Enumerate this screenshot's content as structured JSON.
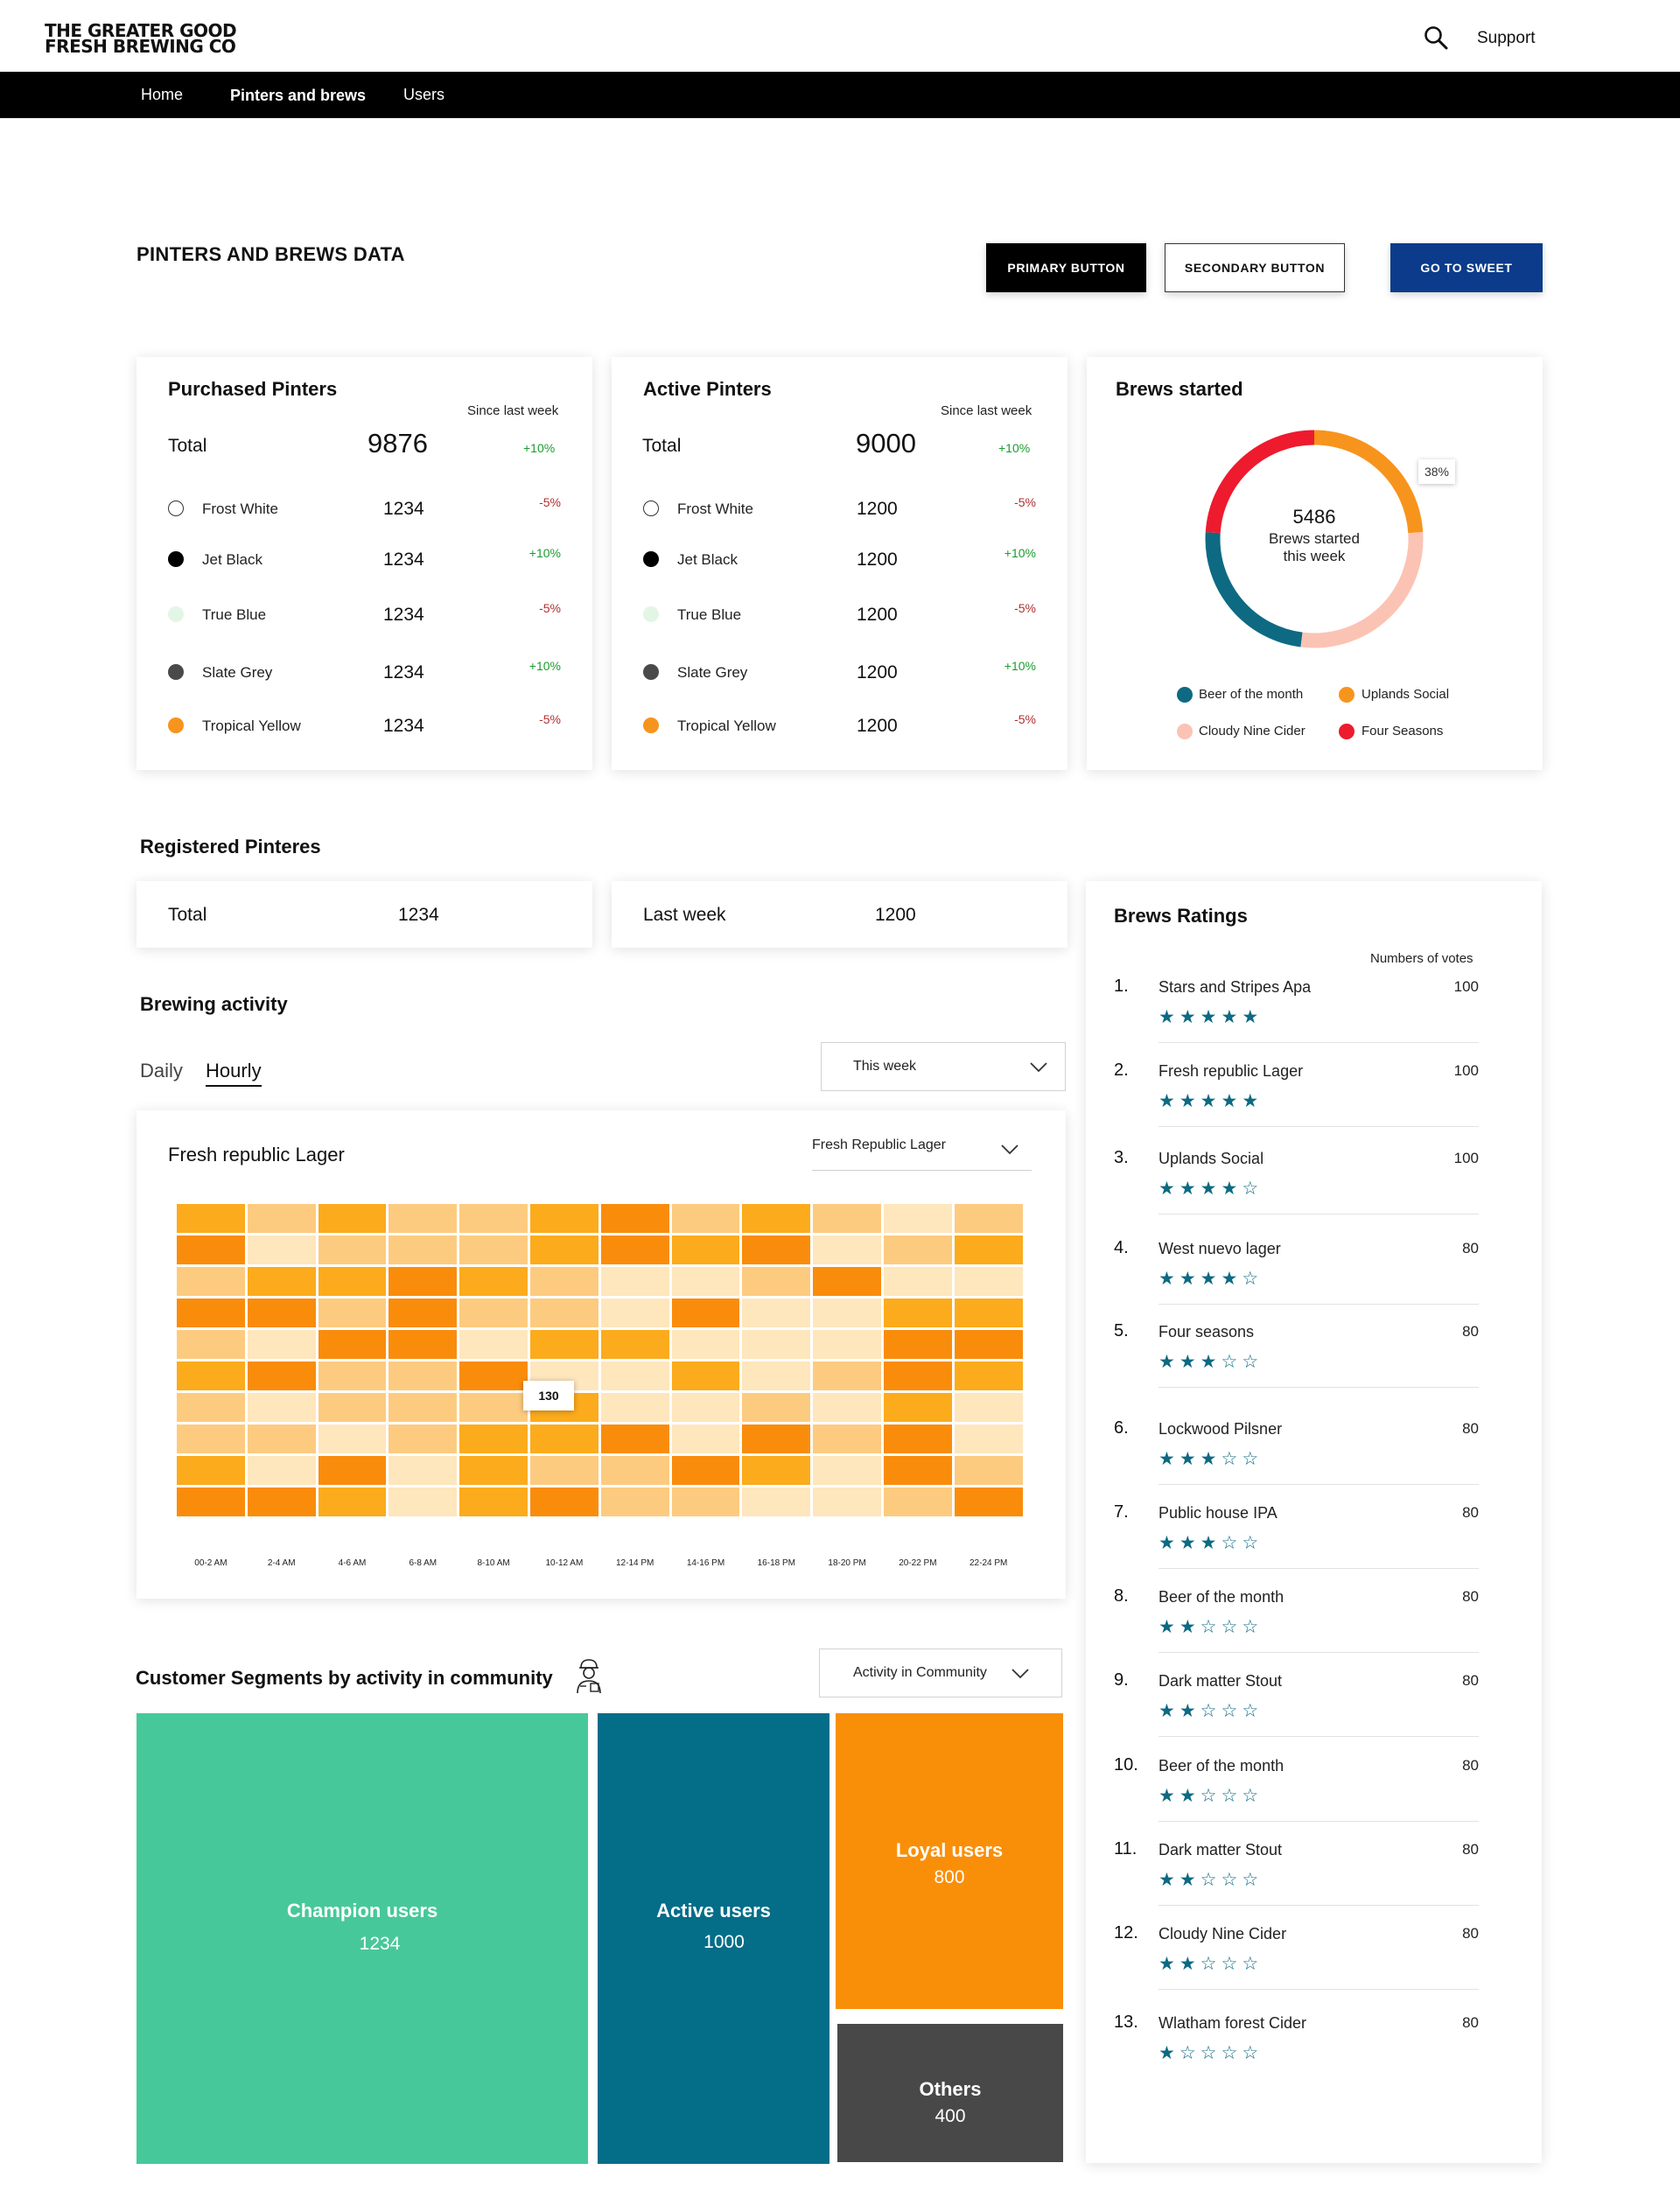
{
  "header": {
    "logo_line1": "THE GREATER GOOD",
    "logo_line2": "FRESH BREWING CO",
    "search_icon": "search-icon",
    "support_label": "Support"
  },
  "nav": {
    "items": [
      {
        "label": "Home"
      },
      {
        "label": "Pinters and brews"
      },
      {
        "label": "Users"
      }
    ]
  },
  "page": {
    "title": "PINTERS AND BREWS DATA",
    "primary_button": "PRIMARY BUTTON",
    "secondary_button": "SECONDARY BUTTON",
    "sweet_button": "GO TO SWEET"
  },
  "purchased": {
    "title": "Purchased Pinters",
    "since": "Since last week",
    "total_label": "Total",
    "total_value": "9876",
    "total_change": "+10%",
    "rows": [
      {
        "label": "Frost White",
        "value": "1234",
        "change": "-5%",
        "color": "#ffffff"
      },
      {
        "label": "Jet Black",
        "value": "1234",
        "change": "+10%",
        "color": "#000000"
      },
      {
        "label": "True Blue",
        "value": "1234",
        "change": "-5%",
        "color": "#e3f6e6"
      },
      {
        "label": "Slate Grey",
        "value": "1234",
        "change": "+10%",
        "color": "#4a4a4a"
      },
      {
        "label": "Tropical Yellow",
        "value": "1234",
        "change": "-5%",
        "color": "#f7941d"
      }
    ]
  },
  "active": {
    "title": "Active Pinters",
    "since": "Since last week",
    "total_label": "Total",
    "total_value": "9000",
    "total_change": "+10%",
    "rows": [
      {
        "label": "Frost White",
        "value": "1200",
        "change": "-5%",
        "color": "#ffffff"
      },
      {
        "label": "Jet Black",
        "value": "1200",
        "change": "+10%",
        "color": "#000000"
      },
      {
        "label": "True Blue",
        "value": "1200",
        "change": "-5%",
        "color": "#e3f6e6"
      },
      {
        "label": "Slate Grey",
        "value": "1200",
        "change": "+10%",
        "color": "#4a4a4a"
      },
      {
        "label": "Tropical Yellow",
        "value": "1200",
        "change": "-5%",
        "color": "#f7941d"
      }
    ]
  },
  "brews_started": {
    "title": "Brews started",
    "center_value": "5486",
    "center_line1": "Brews started",
    "center_line2": "this week",
    "badge": "38%",
    "legend": [
      {
        "label": "Beer of the month",
        "color": "#0d6a82"
      },
      {
        "label": "Uplands Social",
        "color": "#f7941d"
      },
      {
        "label": "Cloudy Nine Cider",
        "color": "#fbc3b4"
      },
      {
        "label": "Four Seasons",
        "color": "#ee1a2e"
      }
    ]
  },
  "chart_data": {
    "type": "pie",
    "categories": [
      "Uplands Social",
      "Cloudy Nine Cider",
      "Beer of the month",
      "Four Seasons"
    ],
    "values": [
      24,
      28,
      24,
      24
    ],
    "colors": [
      "#f7941d",
      "#fbc3b4",
      "#0d6a82",
      "#ee1a2e"
    ]
  },
  "registered": {
    "title": "Registered Pinteres",
    "total_label": "Total",
    "total_value": "1234",
    "last_week_label": "Last week",
    "last_week_value": "1200"
  },
  "brewing_activity": {
    "title": "Brewing activity",
    "tab_daily": "Daily",
    "tab_hourly": "Hourly",
    "week_select": "This week",
    "chart_title": "Fresh republic Lager",
    "beer_select": "Fresh Republic Lager",
    "tooltip": "130",
    "x_labels": [
      "00-2 AM",
      "2-4 AM",
      "4-6 AM",
      "6-8 AM",
      "8-10 AM",
      "10-12 AM",
      "12-14 PM",
      "14-16 PM",
      "16-18 PM",
      "18-20 PM",
      "20-22 PM",
      "22-24 PM"
    ],
    "palette": [
      "#fee6bd",
      "#fdcb7f",
      "#fcab1c",
      "#fa8c0b"
    ],
    "grid": [
      [
        2,
        1,
        2,
        1,
        1,
        2,
        3,
        1,
        2,
        1,
        0,
        1
      ],
      [
        3,
        0,
        1,
        1,
        1,
        2,
        3,
        2,
        3,
        0,
        1,
        2
      ],
      [
        1,
        2,
        2,
        3,
        2,
        1,
        0,
        0,
        1,
        3,
        0,
        0
      ],
      [
        3,
        3,
        1,
        3,
        1,
        1,
        0,
        3,
        0,
        0,
        2,
        2
      ],
      [
        1,
        0,
        3,
        3,
        0,
        2,
        2,
        0,
        0,
        0,
        3,
        3
      ],
      [
        2,
        3,
        1,
        1,
        3,
        0,
        0,
        2,
        0,
        1,
        3,
        2
      ],
      [
        1,
        0,
        1,
        1,
        1,
        2,
        0,
        0,
        1,
        0,
        2,
        0
      ],
      [
        1,
        1,
        0,
        1,
        2,
        2,
        3,
        0,
        3,
        1,
        3,
        0
      ],
      [
        2,
        0,
        3,
        0,
        2,
        1,
        1,
        3,
        2,
        0,
        3,
        1
      ],
      [
        3,
        3,
        2,
        0,
        2,
        3,
        1,
        1,
        0,
        0,
        1,
        3
      ]
    ]
  },
  "segments": {
    "title": "Customer Segments by activity in community",
    "icon": "brewer-person-icon",
    "select": "Activity in Community",
    "blocks": [
      {
        "label": "Champion users",
        "value": "1234",
        "color": "#47c89b"
      },
      {
        "label": "Active users",
        "value": "1000",
        "color": "#046d88"
      },
      {
        "label": "Loyal users",
        "value": "800",
        "color": "#f98f09"
      },
      {
        "label": "Others",
        "value": "400",
        "color": "#484848"
      }
    ]
  },
  "ratings": {
    "title": "Brews Ratings",
    "votes_header": "Numbers of votes",
    "items": [
      {
        "rank": "1.",
        "name": "Stars and Stripes Apa",
        "votes": "100",
        "stars": 5
      },
      {
        "rank": "2.",
        "name": "Fresh republic Lager",
        "votes": "100",
        "stars": 5
      },
      {
        "rank": "3.",
        "name": "Uplands Social",
        "votes": "100",
        "stars": 4
      },
      {
        "rank": "4.",
        "name": "West nuevo lager",
        "votes": "80",
        "stars": 4
      },
      {
        "rank": "5.",
        "name": "Four seasons",
        "votes": "80",
        "stars": 3
      },
      {
        "rank": "6.",
        "name": "Lockwood Pilsner",
        "votes": "80",
        "stars": 3
      },
      {
        "rank": "7.",
        "name": "Public house IPA",
        "votes": "80",
        "stars": 3
      },
      {
        "rank": "8.",
        "name": "Beer of the month",
        "votes": "80",
        "stars": 2
      },
      {
        "rank": "9.",
        "name": "Dark matter Stout",
        "votes": "80",
        "stars": 2
      },
      {
        "rank": "10.",
        "name": "Beer of the month",
        "votes": "80",
        "stars": 2
      },
      {
        "rank": "11.",
        "name": "Dark matter Stout",
        "votes": "80",
        "stars": 2
      },
      {
        "rank": "12.",
        "name": "Cloudy Nine Cider",
        "votes": "80",
        "stars": 2
      },
      {
        "rank": "13.",
        "name": "Wlatham forest Cider",
        "votes": "80",
        "stars": 1
      }
    ]
  }
}
